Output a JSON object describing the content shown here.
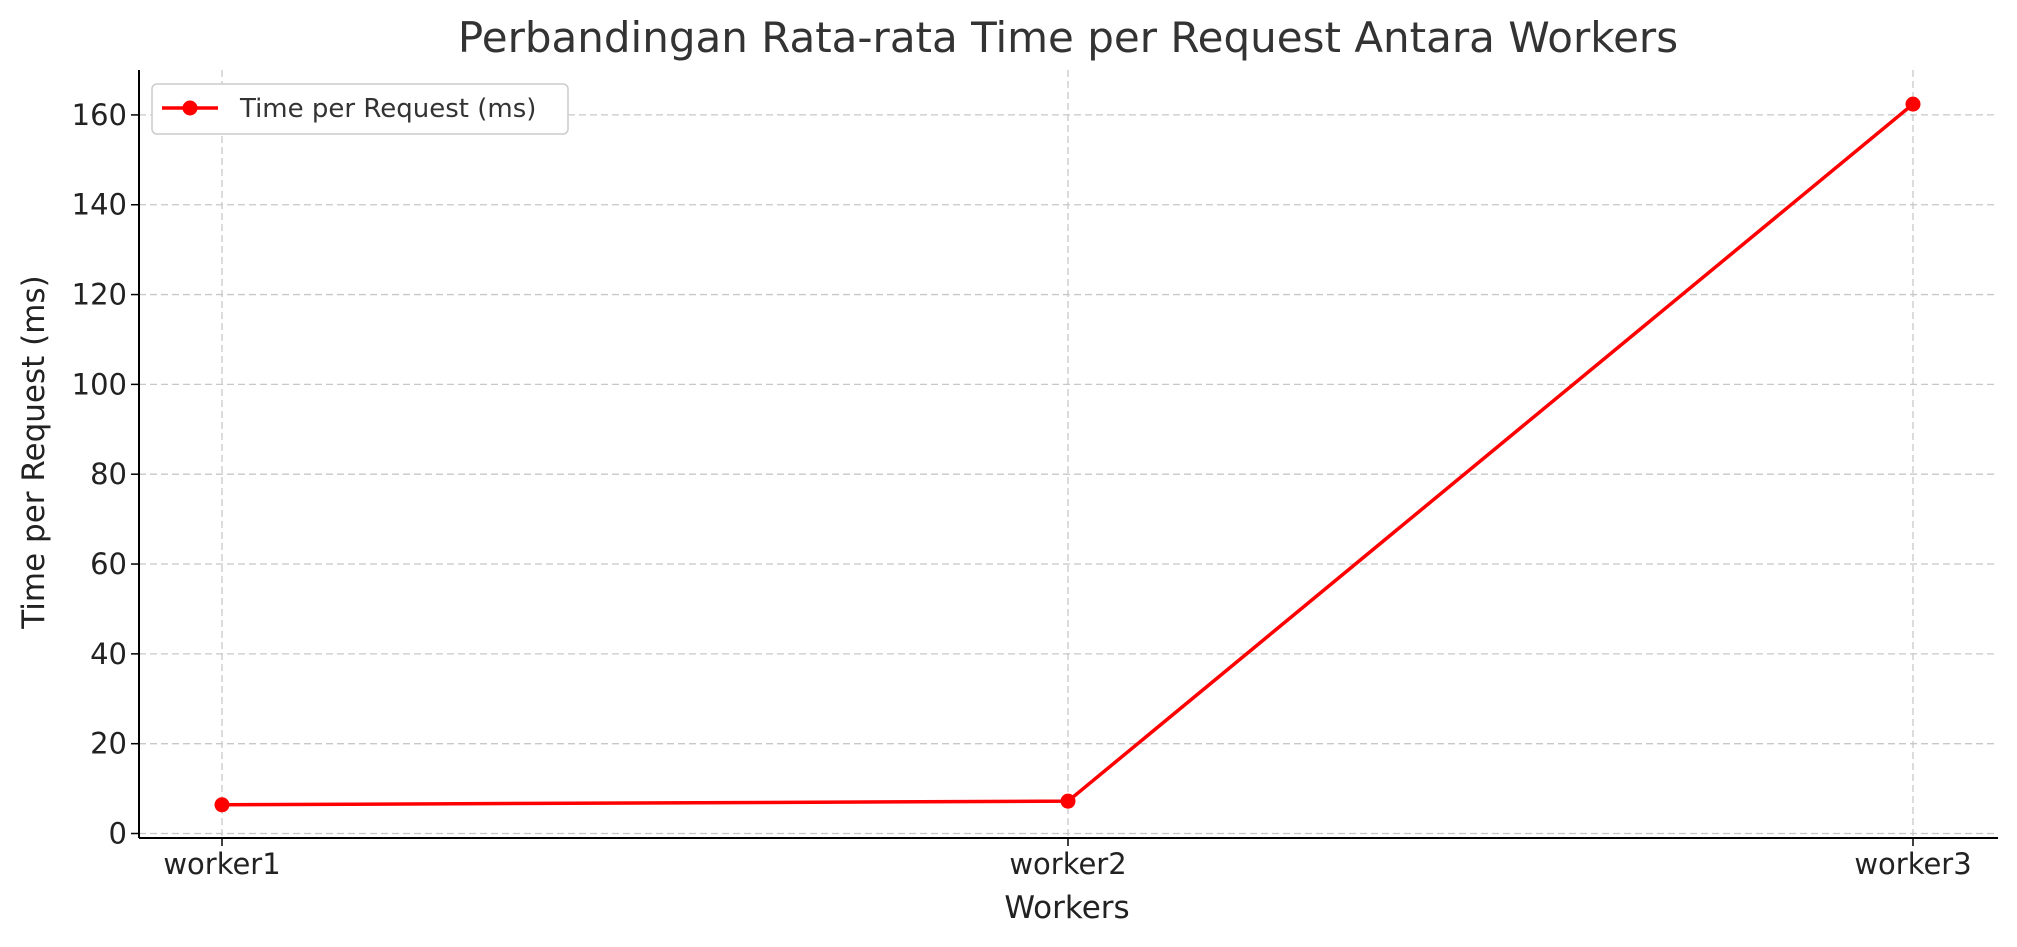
{
  "chart_data": {
    "type": "line",
    "title": "Perbandingan Rata-rata Time per Request Antara Workers",
    "xlabel": "Workers",
    "ylabel": "Time per Request (ms)",
    "categories": [
      "worker1",
      "worker2",
      "worker3"
    ],
    "series": [
      {
        "name": "Time per Request (ms)",
        "values": [
          6.4,
          7.2,
          162.4
        ],
        "color": "#ff0000",
        "marker": "circle"
      }
    ],
    "ylim": [
      -1,
      170
    ],
    "yticks": [
      0,
      20,
      40,
      60,
      80,
      100,
      120,
      140,
      160
    ],
    "grid": true,
    "grid_style": "dashed",
    "legend_position": "top-left"
  }
}
